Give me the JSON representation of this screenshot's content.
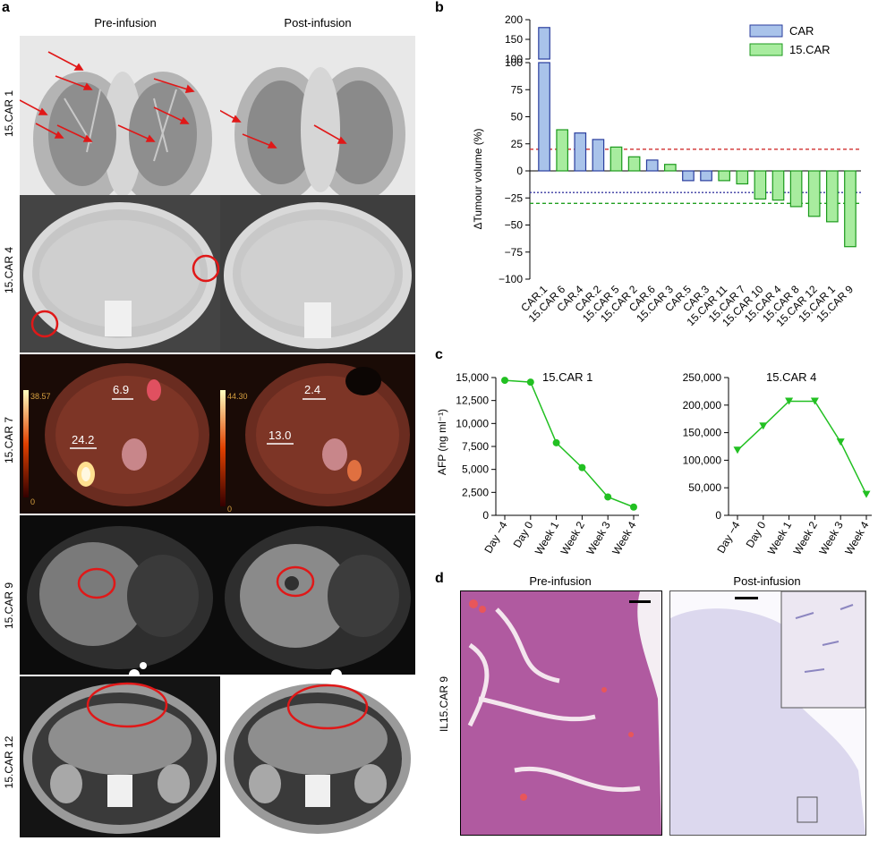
{
  "panels": {
    "a": "a",
    "b": "b",
    "c": "c",
    "d": "d"
  },
  "imaging": {
    "col_headers": [
      "Pre-infusion",
      "Post-infusion"
    ],
    "rows": [
      "15.CAR 1",
      "15.CAR 4",
      "15.CAR 7",
      "15.CAR 9",
      "15.CAR 12"
    ],
    "pet": {
      "pre_scale_max": "38.57",
      "pre_scale_min": "0",
      "post_scale_max": "44.30",
      "post_scale_min": "0",
      "pre_values": [
        "6.9",
        "24.2"
      ],
      "post_values": [
        "2.4",
        "13.0"
      ]
    }
  },
  "colors": {
    "car": "#a9c3ea",
    "car_edge": "#2a3e9e",
    "car15": "#a8ec9f",
    "car15_edge": "#1c9a1c",
    "red_line": "#d03030",
    "blue_line": "#3a3aa0",
    "green_line": "#21a021",
    "afp_line": "#22c022"
  },
  "chart_data": [
    {
      "type": "bar",
      "title": "",
      "ylabel": "ΔTumour volume (%)",
      "legend": [
        {
          "name": "CAR",
          "color": "car"
        },
        {
          "name": "15.CAR",
          "color": "car15"
        }
      ],
      "legend_position": "top-right",
      "categories": [
        "CAR.1",
        "15.CAR 6",
        "CAR.4",
        "CAR.2",
        "15.CAR 5",
        "15.CAR 2",
        "CAR.6",
        "15.CAR 3",
        "CAR.5",
        "CAR.3",
        "15.CAR 11",
        "15.CAR 7",
        "15.CAR 10",
        "15.CAR 4",
        "15.CAR 8",
        "15.CAR 12",
        "15.CAR 1",
        "15.CAR 9"
      ],
      "groups": [
        "CAR",
        "15.CAR",
        "CAR",
        "CAR",
        "15.CAR",
        "15.CAR",
        "CAR",
        "15.CAR",
        "CAR",
        "CAR",
        "15.CAR",
        "15.CAR",
        "15.CAR",
        "15.CAR",
        "15.CAR",
        "15.CAR",
        "15.CAR",
        "15.CAR"
      ],
      "values": [
        180,
        38,
        35,
        29,
        22,
        13,
        10,
        6,
        -9,
        -9,
        -9,
        -12,
        -26,
        -27,
        -33,
        -42,
        -47,
        -70
      ],
      "ylim_lower": [
        -100,
        100
      ],
      "ylim_upper": [
        100,
        200
      ],
      "yticks_lower": [
        "−100",
        "−75",
        "−50",
        "−25",
        "0",
        "25",
        "50",
        "75",
        "100"
      ],
      "yticks_upper": [
        "150",
        "200"
      ],
      "reference_lines": [
        {
          "y": 20,
          "color": "red_line"
        },
        {
          "y": -20,
          "color": "blue_line"
        },
        {
          "y": -30,
          "color": "green_line"
        }
      ]
    },
    {
      "type": "line",
      "title": "15.CAR 1",
      "ylabel": "AFP (ng ml⁻¹)",
      "x": [
        "Day −4",
        "Day 0",
        "Week 1",
        "Week 2",
        "Week 3",
        "Week 4"
      ],
      "y": [
        14700,
        14500,
        7900,
        5200,
        2000,
        900
      ],
      "ylim": [
        0,
        15000
      ],
      "yticks": [
        "0",
        "2,500",
        "5,000",
        "7,500",
        "10,000",
        "12,500",
        "15,000"
      ],
      "marker": "circle"
    },
    {
      "type": "line",
      "title": "15.CAR 4",
      "x": [
        "Day −4",
        "Day 0",
        "Week 1",
        "Week 2",
        "Week 3",
        "Week 4"
      ],
      "y": [
        118000,
        162000,
        207000,
        207000,
        133000,
        38000
      ],
      "ylim": [
        0,
        250000
      ],
      "yticks": [
        "0",
        "50,000",
        "100,000",
        "150,000",
        "200,000",
        "250,000"
      ],
      "marker": "triangle-down"
    }
  ],
  "histology": {
    "row_label": "IL15.CAR 9",
    "pre_title": "Pre-infusion",
    "post_title": "Post-infusion"
  }
}
